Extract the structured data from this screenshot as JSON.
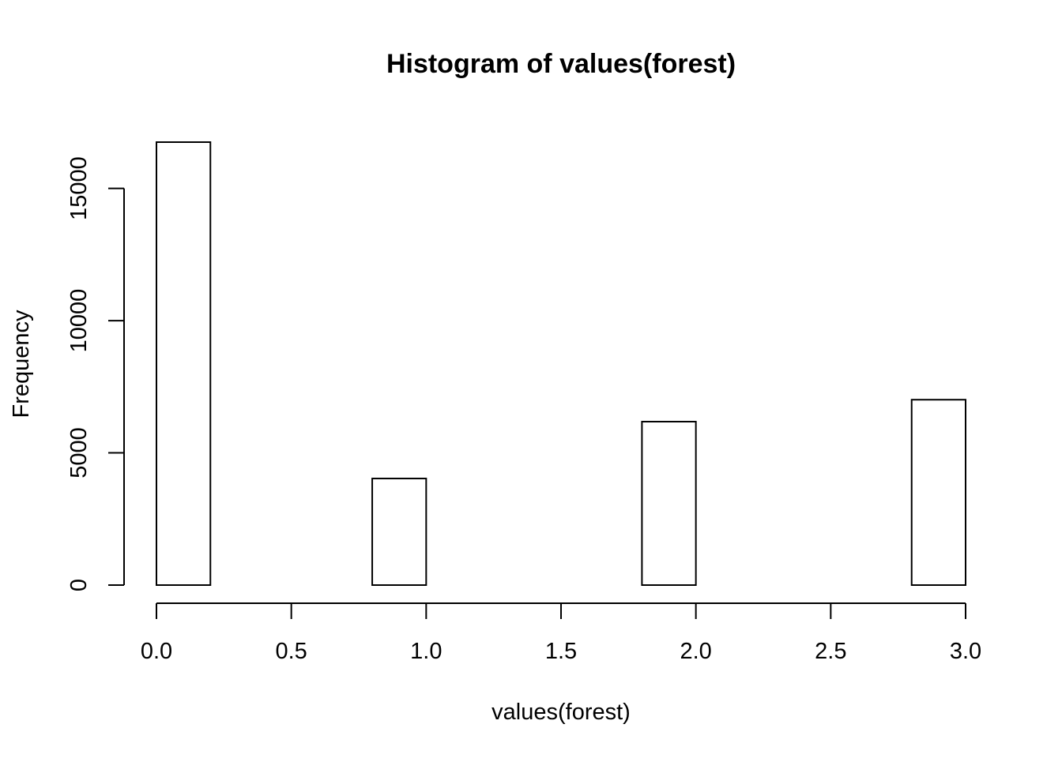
{
  "chart_data": {
    "type": "bar",
    "title": "Histogram of values(forest)",
    "xlabel": "values(forest)",
    "ylabel": "Frequency",
    "xlim": [
      0,
      3
    ],
    "ylim": [
      0,
      16750
    ],
    "bins": [
      {
        "x0": 0.0,
        "x1": 0.2,
        "count": 16750
      },
      {
        "x0": 0.2,
        "x1": 0.4,
        "count": 0
      },
      {
        "x0": 0.4,
        "x1": 0.6,
        "count": 0
      },
      {
        "x0": 0.6,
        "x1": 0.8,
        "count": 0
      },
      {
        "x0": 0.8,
        "x1": 1.0,
        "count": 4030
      },
      {
        "x0": 1.0,
        "x1": 1.2,
        "count": 0
      },
      {
        "x0": 1.2,
        "x1": 1.4,
        "count": 0
      },
      {
        "x0": 1.4,
        "x1": 1.6,
        "count": 0
      },
      {
        "x0": 1.6,
        "x1": 1.8,
        "count": 0
      },
      {
        "x0": 1.8,
        "x1": 2.0,
        "count": 6180
      },
      {
        "x0": 2.0,
        "x1": 2.2,
        "count": 0
      },
      {
        "x0": 2.2,
        "x1": 2.4,
        "count": 0
      },
      {
        "x0": 2.4,
        "x1": 2.6,
        "count": 0
      },
      {
        "x0": 2.6,
        "x1": 2.8,
        "count": 0
      },
      {
        "x0": 2.8,
        "x1": 3.0,
        "count": 7010
      }
    ],
    "x_ticks": [
      0.0,
      0.5,
      1.0,
      1.5,
      2.0,
      2.5,
      3.0
    ],
    "x_tick_labels": [
      "0.0",
      "0.5",
      "1.0",
      "1.5",
      "2.0",
      "2.5",
      "3.0"
    ],
    "y_ticks": [
      0,
      5000,
      10000,
      15000
    ],
    "y_tick_labels": [
      "0",
      "5000",
      "10000",
      "15000"
    ],
    "grid": false,
    "bar_fill": "#ffffff",
    "bar_stroke": "#000000"
  }
}
